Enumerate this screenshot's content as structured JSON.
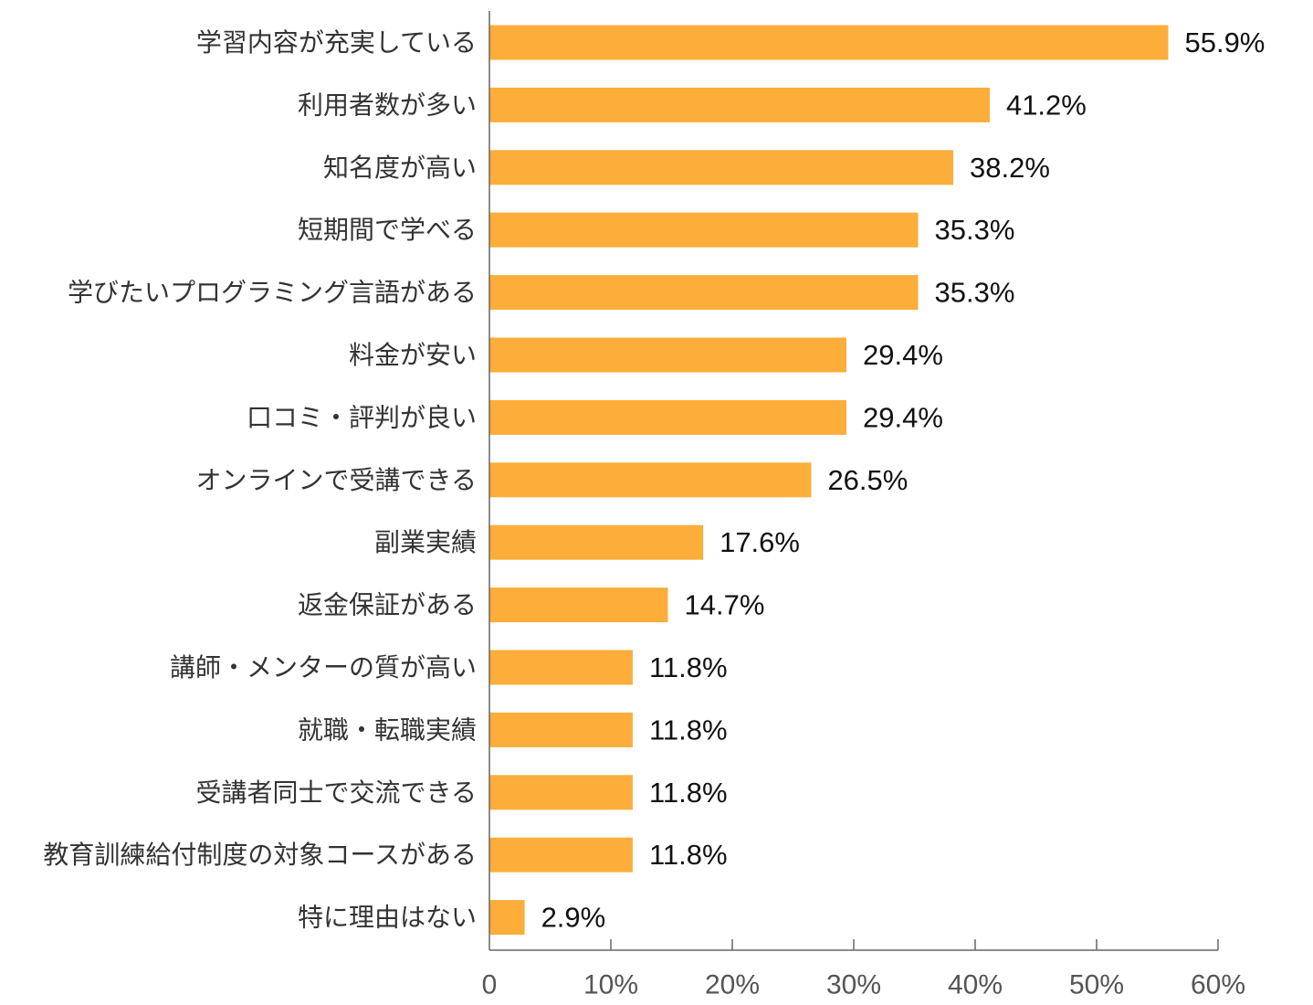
{
  "chart_data": {
    "type": "bar",
    "orientation": "horizontal",
    "categories": [
      "学習内容が充実している",
      "利用者数が多い",
      "知名度が高い",
      "短期間で学べる",
      "学びたいプログラミング言語がある",
      "料金が安い",
      "口コミ・評判が良い",
      "オンラインで受講できる",
      "副業実績",
      "返金保証がある",
      "講師・メンターの質が高い",
      "就職・転職実績",
      "受講者同士で交流できる",
      "教育訓練給付制度の対象コースがある",
      "特に理由はない"
    ],
    "values": [
      55.9,
      41.2,
      38.2,
      35.3,
      35.3,
      29.4,
      29.4,
      26.5,
      17.6,
      14.7,
      11.8,
      11.8,
      11.8,
      11.8,
      2.9
    ],
    "value_labels": [
      "55.9%",
      "41.2%",
      "38.2%",
      "35.3%",
      "35.3%",
      "29.4%",
      "29.4%",
      "26.5%",
      "17.6%",
      "14.7%",
      "11.8%",
      "11.8%",
      "11.8%",
      "11.8%",
      "2.9%"
    ],
    "xlim": [
      0,
      60
    ],
    "xticks": [
      0,
      10,
      20,
      30,
      40,
      50,
      60
    ],
    "xtick_labels": [
      "0",
      "10%",
      "20%",
      "30%",
      "40%",
      "50%",
      "60%"
    ],
    "grid": false,
    "legend": "none",
    "bar_color": "#FCAD3A"
  }
}
